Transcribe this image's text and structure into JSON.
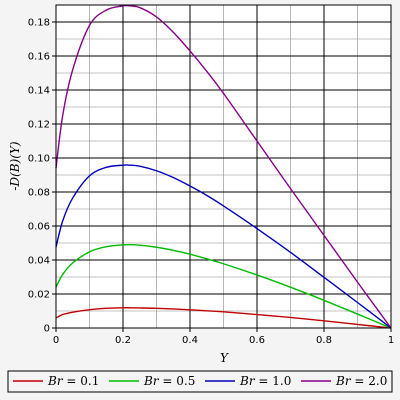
{
  "chart_data": {
    "type": "line",
    "xlabel": "Y",
    "ylabel": "-D(B)(Y)",
    "xlim": [
      0,
      1
    ],
    "ylim": [
      0,
      0.19
    ],
    "x_ticks": [
      0,
      0.2,
      0.4,
      0.6,
      0.8,
      1
    ],
    "x_tick_labels": [
      "0",
      "0.2",
      "0.4",
      "0.6",
      "0.8",
      "1"
    ],
    "y_ticks": [
      0,
      0.02,
      0.04,
      0.06,
      0.08,
      0.1,
      0.12,
      0.14,
      0.16,
      0.18
    ],
    "y_tick_labels": [
      "0",
      "0.02",
      "0.04",
      "0.06",
      "0.08",
      "0.10",
      "0.12",
      "0.14",
      "0.16",
      "0.18"
    ],
    "grid": true,
    "legend_position": "bottom",
    "x": [
      0,
      0.02,
      0.05,
      0.1,
      0.15,
      0.2,
      0.22,
      0.25,
      0.3,
      0.35,
      0.4,
      0.45,
      0.5,
      0.6,
      0.7,
      0.8,
      0.9,
      1.0
    ],
    "series": [
      {
        "name": "Br = 0.1",
        "legend_var": "Br",
        "legend_value": " = 0.1",
        "color": "#c00000",
        "values": [
          0.0059,
          0.0079,
          0.0093,
          0.0108,
          0.0116,
          0.0119,
          0.0119,
          0.0118,
          0.0116,
          0.0112,
          0.0107,
          0.0101,
          0.0095,
          0.0079,
          0.0062,
          0.0042,
          0.0021,
          0.0
        ]
      },
      {
        "name": "Br = 0.5",
        "legend_var": "Br",
        "legend_value": " = 0.5",
        "color": "#00bb00",
        "values": [
          0.024,
          0.0315,
          0.0383,
          0.0448,
          0.0478,
          0.0489,
          0.049,
          0.0487,
          0.0475,
          0.0457,
          0.0434,
          0.0407,
          0.0378,
          0.0312,
          0.024,
          0.0163,
          0.0082,
          0.0
        ]
      },
      {
        "name": "Br = 1.0",
        "legend_var": "Br",
        "legend_value": " = 1.0",
        "color": "#0000bb",
        "values": [
          0.0475,
          0.063,
          0.0765,
          0.0895,
          0.0945,
          0.0958,
          0.0958,
          0.0952,
          0.0925,
          0.0885,
          0.0835,
          0.078,
          0.0718,
          0.0585,
          0.0445,
          0.0298,
          0.015,
          0.0
        ]
      },
      {
        "name": "Br = 2.0",
        "legend_var": "Br",
        "legend_value": " = 2.0",
        "color": "#880088",
        "values": [
          0.094,
          0.125,
          0.152,
          0.178,
          0.187,
          0.1895,
          0.1895,
          0.1885,
          0.183,
          0.174,
          0.163,
          0.151,
          0.138,
          0.11,
          0.082,
          0.0545,
          0.027,
          0.0
        ]
      }
    ]
  }
}
